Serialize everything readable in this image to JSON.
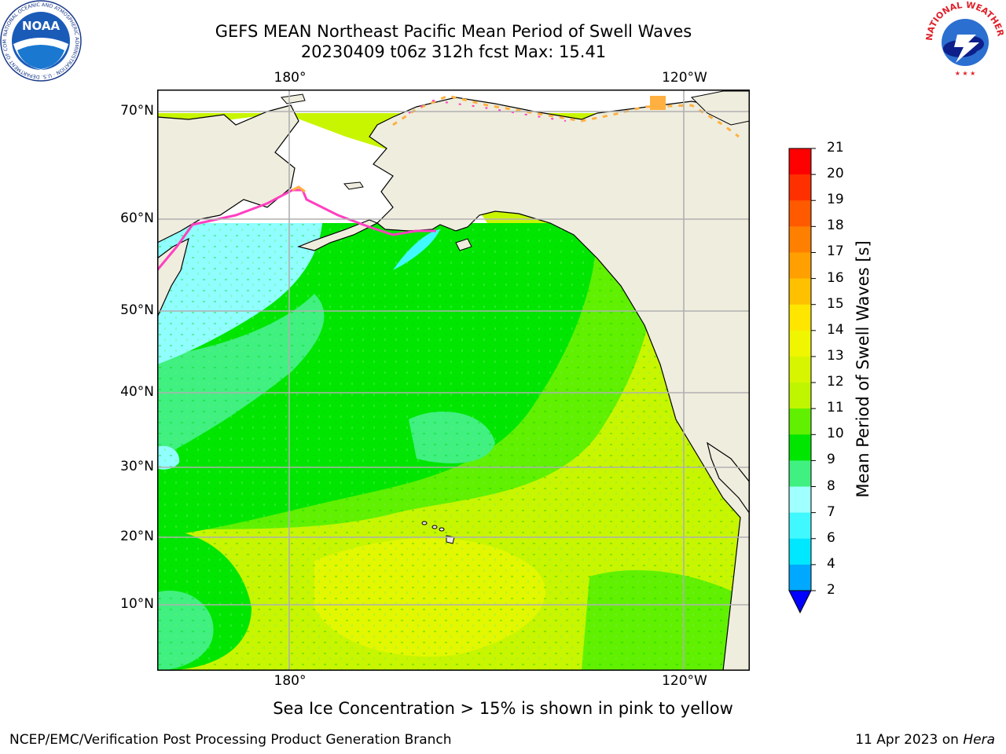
{
  "title_line1": "GEFS MEAN Northeast Pacific Mean Period of Swell Waves",
  "title_line2": "20230409 t06z 312h fcst   Max: 15.41",
  "lon_labels": [
    "180°",
    "120°W"
  ],
  "lat_labels": [
    "70°N",
    "60°N",
    "50°N",
    "40°N",
    "30°N",
    "20°N",
    "10°N"
  ],
  "colorbar": {
    "title": "Mean Period of Swell Waves [s]",
    "ticks": [
      "21",
      "20",
      "19",
      "18",
      "17",
      "16",
      "15",
      "14",
      "13",
      "12",
      "11",
      "10",
      "9",
      "8",
      "7",
      "6",
      "4",
      "2"
    ],
    "colors": [
      "#ff0000",
      "#ff3000",
      "#ff5a00",
      "#ff8000",
      "#ffa000",
      "#ffc000",
      "#ffe600",
      "#f0f500",
      "#d8f500",
      "#c0f500",
      "#60f000",
      "#00e600",
      "#40f080",
      "#a0ffff",
      "#40f8ff",
      "#00e8ff",
      "#00a8ff",
      "#0060ff"
    ],
    "extend_color": "#0000ff"
  },
  "note": "Sea Ice Concentration > 15% is shown in pink to yellow",
  "footer_left": "NCEP/EMC/Verification Post Processing Product Generation Branch",
  "footer_right_prefix": "11 Apr 2023 on ",
  "footer_right_machine": "Hera",
  "logos": {
    "noaa_text": "NOAA",
    "noaa_ring_text": "NATIONAL OCEANIC AND ATMOSPHERIC ADMINISTRATION · U.S. DEPARTMENT OF COMMERCE",
    "nws_ring_text": "NATIONAL WEATHER SERVICE"
  },
  "map_colors": {
    "land": "#efedde",
    "ice_free": "#ffffff",
    "cyan_light": "#90fdff",
    "green_sea": "#40f080",
    "green": "#00e600",
    "lime": "#60f000",
    "yellow_green": "#c8f500",
    "yellow": "#e2f700",
    "ice_pink": "#ff40c0",
    "ice_orange": "#ffb040"
  }
}
